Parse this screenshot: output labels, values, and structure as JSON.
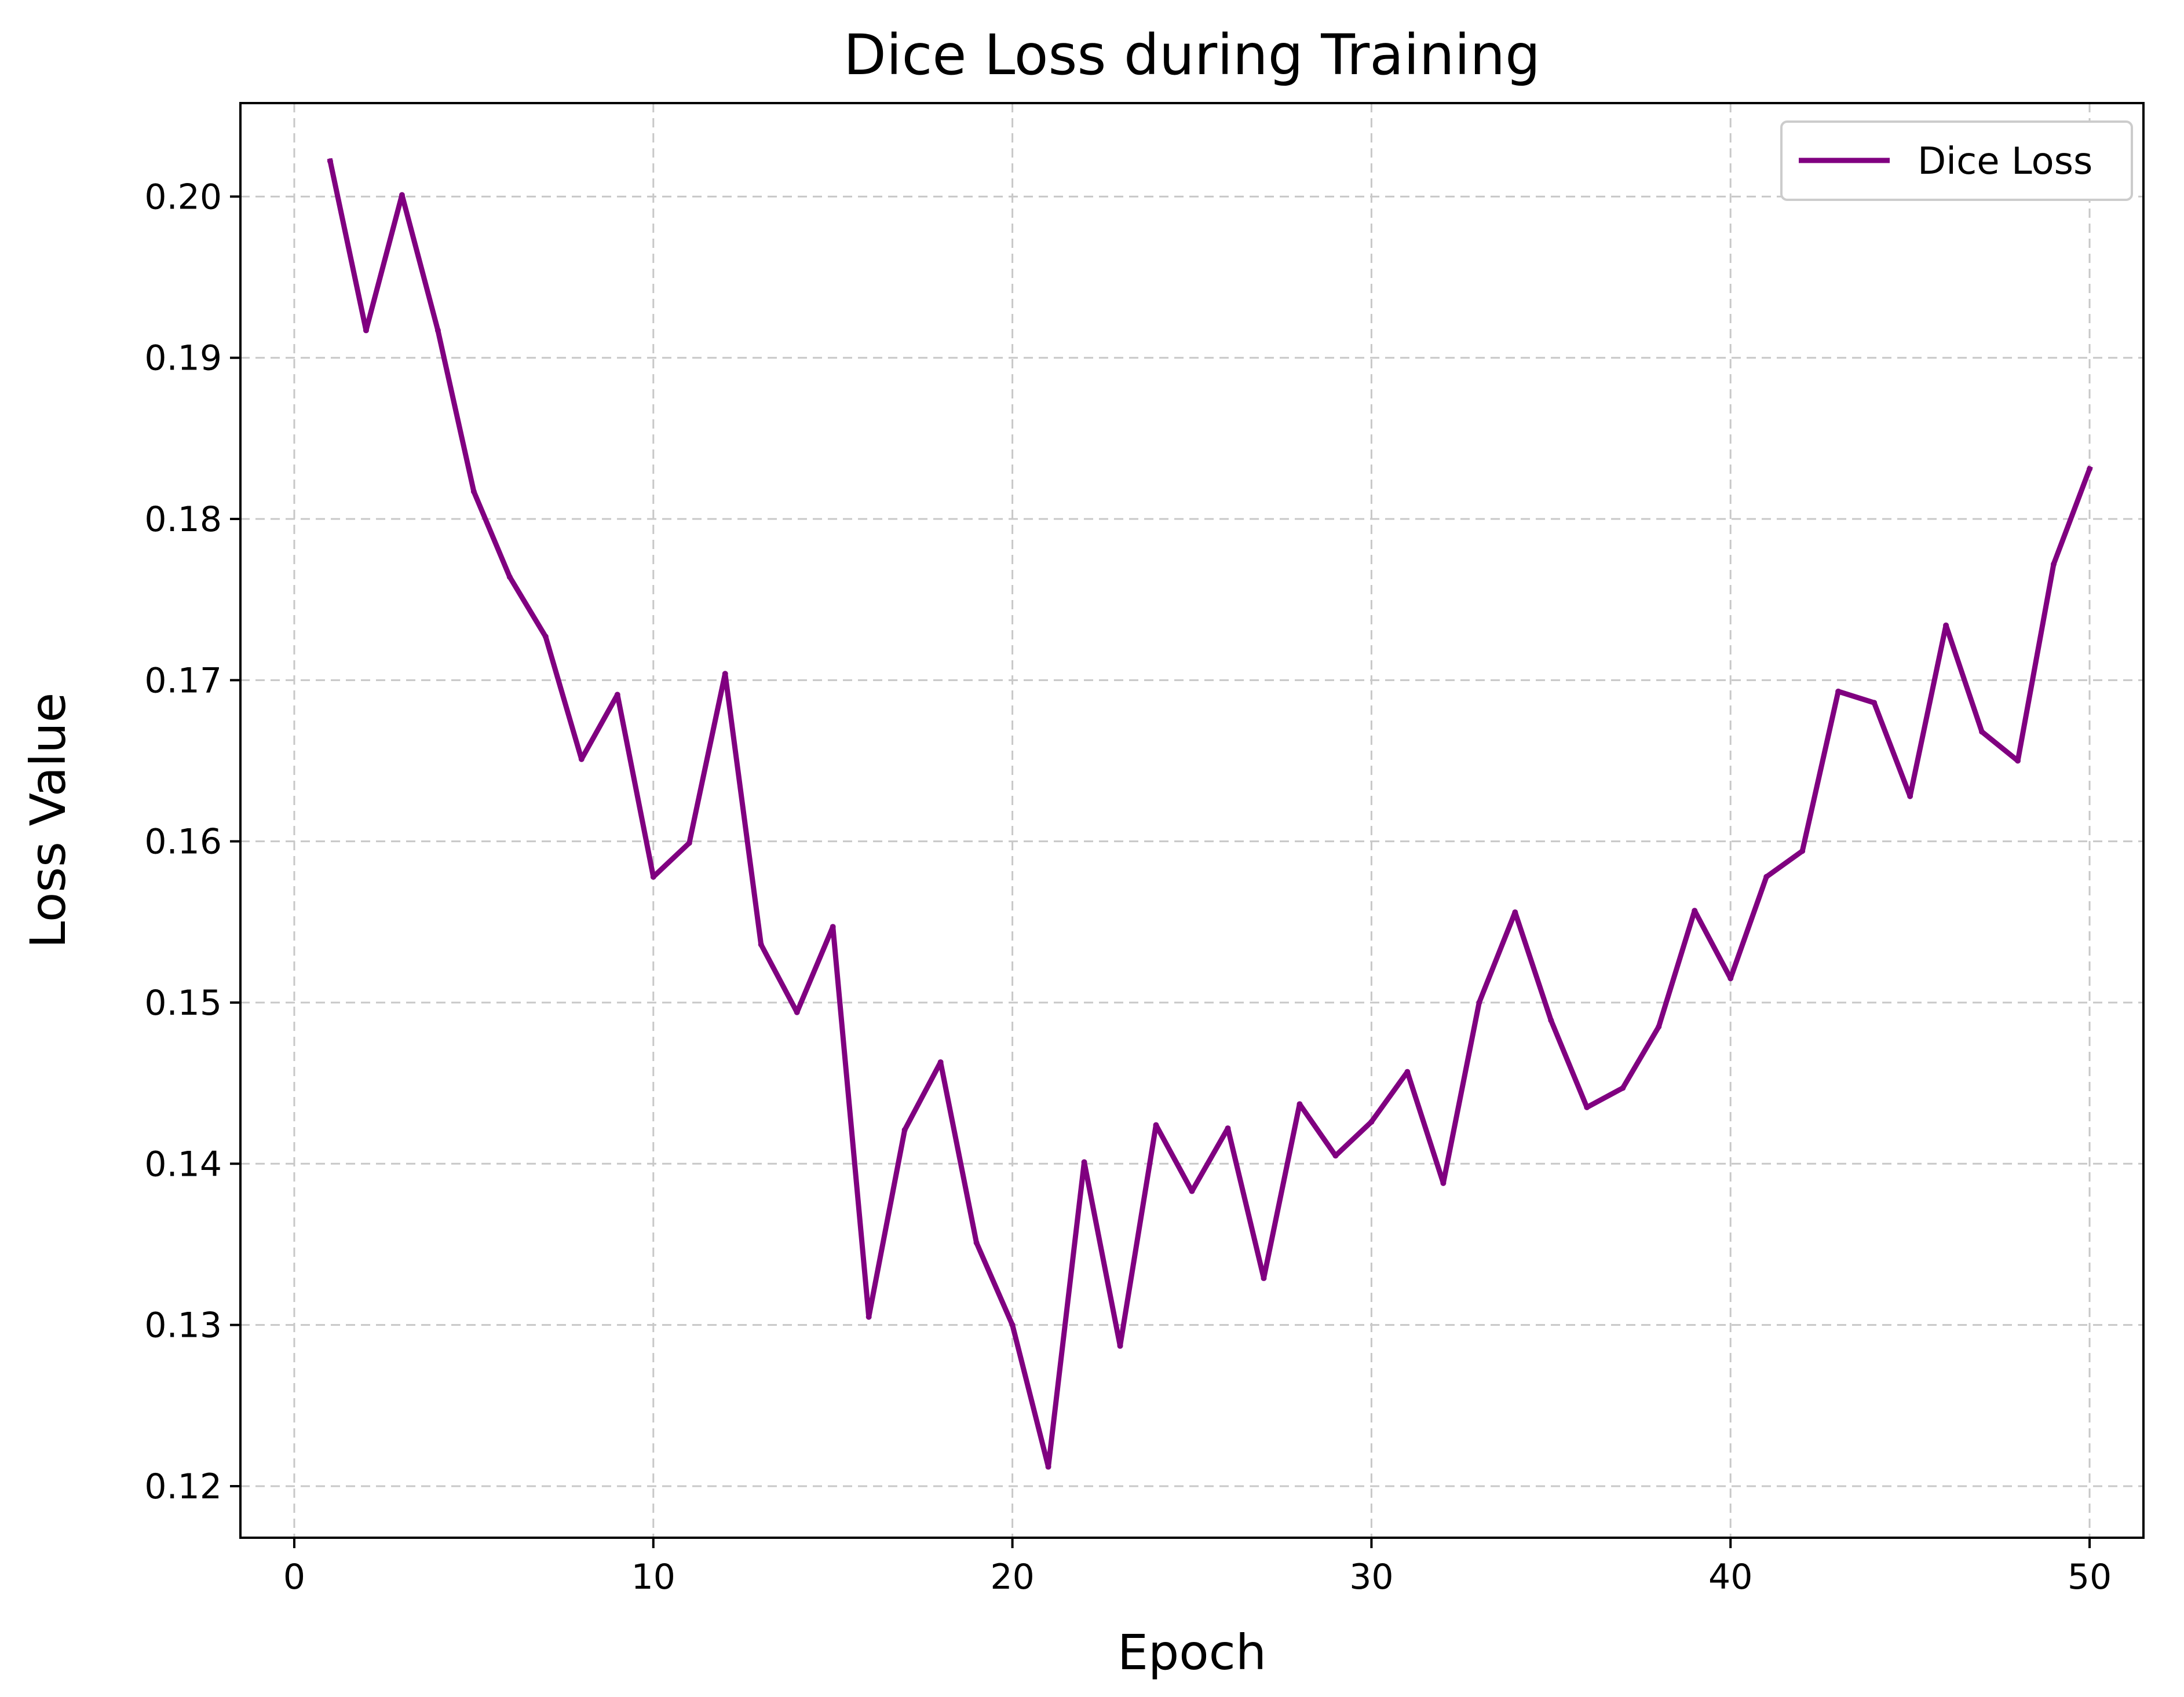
{
  "chart_data": {
    "type": "line",
    "title": "Dice Loss during Training",
    "xlabel": "Epoch",
    "ylabel": "Loss Value",
    "xlim": [
      -1.5,
      51.5
    ],
    "ylim": [
      0.1168,
      0.2058
    ],
    "xticks": [
      0,
      10,
      20,
      30,
      40,
      50
    ],
    "xtick_labels": [
      "0",
      "10",
      "20",
      "30",
      "40",
      "50"
    ],
    "yticks": [
      0.12,
      0.13,
      0.14,
      0.15,
      0.16,
      0.17,
      0.18,
      0.19,
      0.2
    ],
    "ytick_labels": [
      "0.12",
      "0.13",
      "0.14",
      "0.15",
      "0.16",
      "0.17",
      "0.18",
      "0.19",
      "0.20"
    ],
    "grid": true,
    "legend_position": "top-right",
    "series": [
      {
        "name": "Dice Loss",
        "color": "#800080",
        "x": [
          1,
          2,
          3,
          4,
          5,
          6,
          7,
          8,
          9,
          10,
          11,
          12,
          13,
          14,
          15,
          16,
          17,
          18,
          19,
          20,
          21,
          22,
          23,
          24,
          25,
          26,
          27,
          28,
          29,
          30,
          31,
          32,
          33,
          34,
          35,
          36,
          37,
          38,
          39,
          40,
          41,
          42,
          43,
          44,
          45,
          46,
          47,
          48,
          49,
          50
        ],
        "values": [
          0.2022,
          0.1917,
          0.2001,
          0.1917,
          0.1817,
          0.1764,
          0.1727,
          0.1651,
          0.1691,
          0.1578,
          0.1599,
          0.1704,
          0.1536,
          0.1494,
          0.1547,
          0.1305,
          0.1421,
          0.1463,
          0.1351,
          0.13,
          0.1212,
          0.1401,
          0.1287,
          0.1424,
          0.1383,
          0.1422,
          0.1329,
          0.1437,
          0.1405,
          0.1426,
          0.1457,
          0.1388,
          0.15,
          0.1556,
          0.1489,
          0.1435,
          0.1447,
          0.1485,
          0.1557,
          0.1515,
          0.1578,
          0.1594,
          0.1693,
          0.1686,
          0.1628,
          0.1734,
          0.1668,
          0.165,
          0.1772,
          0.1831
        ]
      }
    ]
  }
}
